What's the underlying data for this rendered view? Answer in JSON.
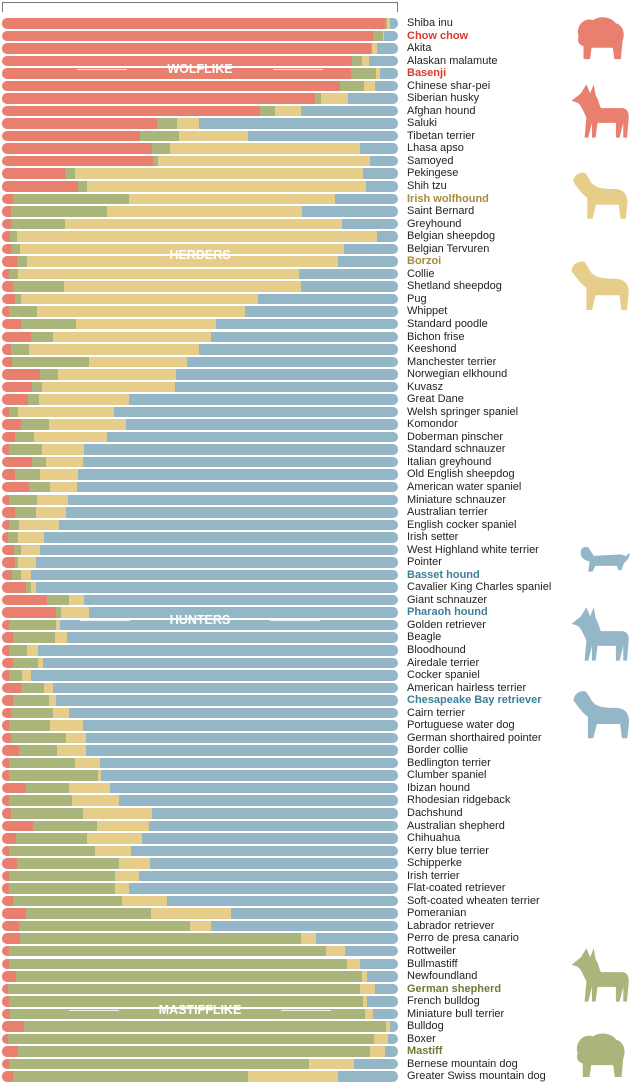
{
  "colors": {
    "wolflike": "#e97f6e",
    "mastifflike": "#aab57c",
    "herders": "#e6cd8a",
    "hunters": "#93b7c7",
    "wolflike_text": "#d83a2a",
    "herders_text": "#a88a40",
    "hunters_text": "#3d7f96",
    "mastifflike_text": "#6b7c36"
  },
  "chart_data": {
    "type": "bar",
    "orientation": "horizontal-stacked-100",
    "series": [
      "wolflike",
      "mastifflike",
      "herders",
      "hunters"
    ],
    "group_labels": {
      "wolflike": "WOLFLIKE",
      "herders": "HERDERS",
      "hunters": "HUNTERS",
      "mastifflike": "MASTIFFLIKE"
    },
    "xlim": [
      0,
      100
    ],
    "breeds": [
      {
        "name": "Shiba inu",
        "v": [
          96.6,
          0.6,
          0.7,
          2.1
        ]
      },
      {
        "name": "Chow chow",
        "v": [
          93.6,
          2.5,
          0.4,
          3.5
        ],
        "hl": "wolflike"
      },
      {
        "name": "Akita",
        "v": [
          93.1,
          0.3,
          1.3,
          5.3
        ]
      },
      {
        "name": "Alaskan malamute",
        "v": [
          88.3,
          2.7,
          1.6,
          7.4
        ]
      },
      {
        "name": "Basenji",
        "v": [
          88.2,
          6.3,
          0.9,
          4.6
        ],
        "hl": "wolflike"
      },
      {
        "name": "Chinese shar-pei",
        "v": [
          85.3,
          6.1,
          2.8,
          5.8
        ]
      },
      {
        "name": "Siberian husky",
        "v": [
          79.1,
          1.4,
          6.8,
          12.7
        ]
      },
      {
        "name": "Afghan hound",
        "v": [
          65.2,
          3.7,
          6.7,
          24.4
        ]
      },
      {
        "name": "Saluki",
        "v": [
          39.1,
          5.1,
          5.5,
          50.3
        ]
      },
      {
        "name": "Tibetan terrier",
        "v": [
          34.8,
          9.8,
          17.6,
          37.8
        ]
      },
      {
        "name": "Lhasa apso",
        "v": [
          37.8,
          4.5,
          48.1,
          9.6
        ]
      },
      {
        "name": "Samoyed",
        "v": [
          38.1,
          1.3,
          53.6,
          7.0
        ]
      },
      {
        "name": "Pekingese",
        "v": [
          16.0,
          2.4,
          72.7,
          8.9
        ]
      },
      {
        "name": "Shih tzu",
        "v": [
          19.1,
          2.3,
          70.6,
          8.0
        ]
      },
      {
        "name": "Irish wolfhound",
        "v": [
          2.9,
          29.1,
          52.1,
          15.9
        ],
        "hl": "herders"
      },
      {
        "name": "Saint Bernard",
        "v": [
          2.3,
          24.2,
          49.3,
          24.2
        ]
      },
      {
        "name": "Greyhound",
        "v": [
          2.3,
          13.6,
          70.0,
          14.1
        ]
      },
      {
        "name": "Belgian sheepdog",
        "v": [
          2.1,
          1.6,
          91.0,
          5.3
        ]
      },
      {
        "name": "Belgian Tervuren",
        "v": [
          2.3,
          2.3,
          81.8,
          13.6
        ]
      },
      {
        "name": "Borzoi",
        "v": [
          3.8,
          2.6,
          78.4,
          15.2
        ],
        "hl": "herders"
      },
      {
        "name": "Collie",
        "v": [
          1.7,
          2.3,
          71.0,
          25.0
        ]
      },
      {
        "name": "Shetland sheepdog",
        "v": [
          2.9,
          12.7,
          60.0,
          24.4
        ]
      },
      {
        "name": "Pug",
        "v": [
          3.2,
          1.6,
          59.9,
          35.3
        ]
      },
      {
        "name": "Whippet",
        "v": [
          1.8,
          7.0,
          52.6,
          38.6
        ]
      },
      {
        "name": "Standard poodle",
        "v": [
          4.8,
          13.8,
          35.5,
          45.9
        ]
      },
      {
        "name": "Bichon frise",
        "v": [
          7.4,
          5.6,
          39.7,
          47.3
        ]
      },
      {
        "name": "Keeshond",
        "v": [
          2.3,
          4.4,
          43.0,
          50.3
        ]
      },
      {
        "name": "Manchester terrier",
        "v": [
          2.5,
          19.5,
          24.6,
          53.4
        ]
      },
      {
        "name": "Norwegian elkhound",
        "v": [
          9.5,
          4.7,
          29.8,
          56.0
        ]
      },
      {
        "name": "Kuvasz",
        "v": [
          7.7,
          2.3,
          33.8,
          56.2
        ]
      },
      {
        "name": "Great Dane",
        "v": [
          6.5,
          2.8,
          22.7,
          68.0
        ]
      },
      {
        "name": "Welsh springer spaniel",
        "v": [
          1.7,
          2.3,
          24.4,
          71.6
        ]
      },
      {
        "name": "Komondor",
        "v": [
          4.7,
          7.1,
          19.6,
          68.6
        ]
      },
      {
        "name": "Doberman pinscher",
        "v": [
          3.3,
          4.8,
          18.5,
          73.4
        ]
      },
      {
        "name": "Standard schnauzer",
        "v": [
          1.7,
          8.4,
          10.6,
          79.3
        ]
      },
      {
        "name": "Italian greyhound",
        "v": [
          7.6,
          3.6,
          9.3,
          79.5
        ]
      },
      {
        "name": "Old English sheepdog",
        "v": [
          3.3,
          6.4,
          9.5,
          80.8
        ]
      },
      {
        "name": "American water spaniel",
        "v": [
          6.7,
          5.4,
          6.9,
          81.0
        ]
      },
      {
        "name": "Miniature schnauzer",
        "v": [
          1.8,
          7.0,
          7.9,
          83.3
        ]
      },
      {
        "name": "Australian terrier",
        "v": [
          3.3,
          5.2,
          7.6,
          83.9
        ]
      },
      {
        "name": "English cocker spaniel",
        "v": [
          1.7,
          2.6,
          10.1,
          85.6
        ]
      },
      {
        "name": "Irish setter",
        "v": [
          1.5,
          2.5,
          6.7,
          89.3
        ]
      },
      {
        "name": "West Highland white terrier",
        "v": [
          3.1,
          1.8,
          4.8,
          90.3
        ]
      },
      {
        "name": "Pointer",
        "v": [
          3.2,
          0.8,
          4.7,
          91.3
        ]
      },
      {
        "name": "Basset hound",
        "v": [
          2.5,
          2.3,
          2.5,
          92.7
        ],
        "hl": "hunters"
      },
      {
        "name": "Cavalier King Charles spaniel",
        "v": [
          6.0,
          1.2,
          1.5,
          91.3
        ]
      },
      {
        "name": "Giant schnauzer",
        "v": [
          11.4,
          5.6,
          3.7,
          79.3
        ]
      },
      {
        "name": "Pharaoh hound",
        "v": [
          13.6,
          1.2,
          7.2,
          78.0
        ],
        "hl": "hunters"
      },
      {
        "name": "Golden retriever",
        "v": [
          1.8,
          11.8,
          1.0,
          85.4
        ]
      },
      {
        "name": "Beagle",
        "v": [
          2.8,
          10.6,
          2.9,
          83.7
        ]
      },
      {
        "name": "Bloodhound",
        "v": [
          1.8,
          4.6,
          2.8,
          90.8
        ]
      },
      {
        "name": "Airedale terrier",
        "v": [
          2.8,
          6.3,
          1.2,
          89.7
        ]
      },
      {
        "name": "Cocker spaniel",
        "v": [
          1.8,
          3.2,
          2.3,
          92.7
        ]
      },
      {
        "name": "American hairless terrier",
        "v": [
          4.8,
          5.9,
          2.2,
          87.1
        ]
      },
      {
        "name": "Chesapeake Bay retriever",
        "v": [
          2.9,
          9.0,
          1.8,
          86.3
        ],
        "hl": "hunters"
      },
      {
        "name": "Cairn terrier",
        "v": [
          2.3,
          10.5,
          4.1,
          83.1
        ]
      },
      {
        "name": "Portuguese water dog",
        "v": [
          1.7,
          10.4,
          8.4,
          79.5
        ]
      },
      {
        "name": "German shorthaired pointer",
        "v": [
          2.3,
          13.8,
          5.0,
          78.9
        ]
      },
      {
        "name": "Border collie",
        "v": [
          4.4,
          9.5,
          7.4,
          78.7
        ]
      },
      {
        "name": "Bedlington terrier",
        "v": [
          1.8,
          16.7,
          6.2,
          75.3
        ]
      },
      {
        "name": "Clumber spaniel",
        "v": [
          1.7,
          22.5,
          0.8,
          75.0
        ]
      },
      {
        "name": "Ibizan hound",
        "v": [
          6.0,
          10.9,
          10.5,
          72.6
        ]
      },
      {
        "name": "Rhodesian ridgeback",
        "v": [
          1.8,
          15.9,
          11.9,
          70.4
        ]
      },
      {
        "name": "Dachshund",
        "v": [
          2.3,
          18.1,
          17.6,
          62.0
        ]
      },
      {
        "name": "Australian shepherd",
        "v": [
          7.9,
          16.2,
          13.0,
          62.9
        ]
      },
      {
        "name": "Chihuahua",
        "v": [
          3.5,
          18.0,
          13.8,
          64.7
        ]
      },
      {
        "name": "Kerry blue terrier",
        "v": [
          1.7,
          21.7,
          9.1,
          67.5
        ]
      },
      {
        "name": "Schipperke",
        "v": [
          3.8,
          25.8,
          7.7,
          62.7
        ]
      },
      {
        "name": "Irish terrier",
        "v": [
          1.7,
          26.9,
          6.0,
          65.4
        ]
      },
      {
        "name": "Flat-coated retriever",
        "v": [
          1.7,
          26.9,
          3.5,
          67.9
        ]
      },
      {
        "name": "Soft-coated wheaten terrier",
        "v": [
          2.9,
          27.4,
          11.4,
          58.3
        ]
      },
      {
        "name": "Pomeranian",
        "v": [
          6.0,
          31.6,
          20.3,
          42.1
        ]
      },
      {
        "name": "Labrador retriever",
        "v": [
          4.4,
          43.2,
          5.3,
          47.1
        ]
      },
      {
        "name": "Perro de presa canario",
        "v": [
          4.6,
          71.0,
          3.6,
          20.8
        ]
      },
      {
        "name": "Rottweiler",
        "v": [
          1.7,
          80.0,
          5.0,
          13.3
        ]
      },
      {
        "name": "Bullmastiff",
        "v": [
          1.7,
          85.3,
          3.3,
          9.7
        ]
      },
      {
        "name": "Newfoundland",
        "v": [
          3.5,
          87.4,
          1.3,
          7.8
        ]
      },
      {
        "name": "German shepherd",
        "v": [
          1.5,
          89.0,
          3.8,
          5.7
        ],
        "hl": "mastifflike"
      },
      {
        "name": "French bulldog",
        "v": [
          1.7,
          89.4,
          1.0,
          7.9
        ]
      },
      {
        "name": "Miniature bull terrier",
        "v": [
          2.1,
          89.5,
          2.1,
          6.3
        ]
      },
      {
        "name": "Bulldog",
        "v": [
          5.5,
          91.4,
          1.2,
          1.9
        ]
      },
      {
        "name": "Boxer",
        "v": [
          1.5,
          92.4,
          3.6,
          2.5
        ]
      },
      {
        "name": "Mastiff",
        "v": [
          4.0,
          88.9,
          3.7,
          3.4
        ],
        "hl": "mastifflike"
      },
      {
        "name": "Bernese mountain dog",
        "v": [
          1.7,
          75.8,
          11.5,
          11.0
        ]
      },
      {
        "name": "Greater Swiss mountain dog",
        "v": [
          2.8,
          59.2,
          22.8,
          15.2
        ]
      }
    ]
  },
  "silhouettes": [
    {
      "icon": "chow-chow-silhouette",
      "group": "wolflike"
    },
    {
      "icon": "basenji-silhouette",
      "group": "wolflike"
    },
    {
      "icon": "irish-wolfhound-silhouette",
      "group": "herders"
    },
    {
      "icon": "borzoi-silhouette",
      "group": "herders"
    },
    {
      "icon": "basset-hound-silhouette",
      "group": "hunters"
    },
    {
      "icon": "pharaoh-hound-silhouette",
      "group": "hunters"
    },
    {
      "icon": "chesapeake-bay-retriever-silhouette",
      "group": "hunters"
    },
    {
      "icon": "german-shepherd-silhouette",
      "group": "mastifflike"
    },
    {
      "icon": "mastiff-silhouette",
      "group": "mastifflike"
    }
  ]
}
